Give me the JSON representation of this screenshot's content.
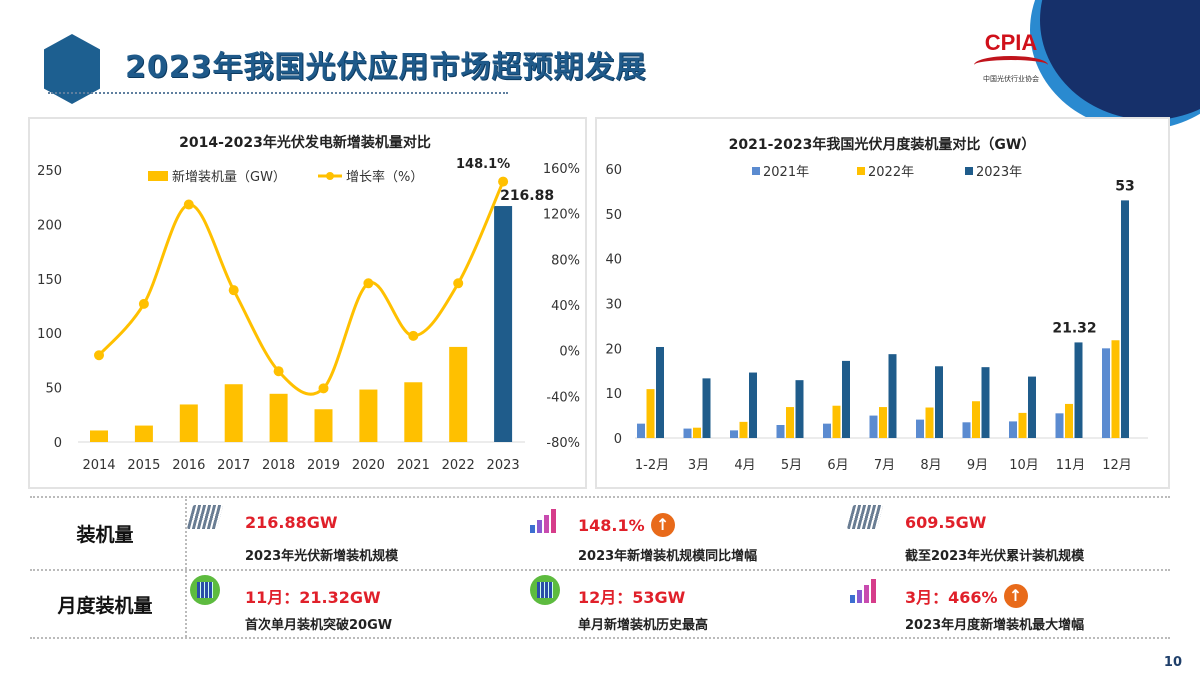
{
  "header": {
    "title": "2023年我国光伏应用市场超预期发展",
    "logo_text": "CPIA",
    "logo_sub": "中国光伏行业协会",
    "page_number": "10"
  },
  "colors": {
    "gold": "#FFC000",
    "navy": "#1F5C8B",
    "blue2021": "#5B8BD0",
    "red": "#E0202A"
  },
  "chart_data": [
    {
      "type": "bar+line",
      "title": "2014-2023年光伏发电新增装机量对比",
      "categories": [
        "2014",
        "2015",
        "2016",
        "2017",
        "2018",
        "2019",
        "2020",
        "2021",
        "2022",
        "2023"
      ],
      "series": [
        {
          "name": "新增装机量（GW）",
          "type": "bar",
          "axis": "left",
          "values": [
            10.6,
            15.1,
            34.5,
            53.1,
            44.3,
            30.1,
            48.2,
            54.9,
            87.4,
            216.88
          ]
        },
        {
          "name": "增长率（%）",
          "type": "line",
          "axis": "right",
          "values": [
            -4,
            41,
            128,
            53,
            -18,
            -33,
            59,
            13,
            59,
            148.1
          ]
        }
      ],
      "highlight_bar": "2023",
      "data_labels": {
        "bar_2023": "216.88",
        "line_2023": "148.1%"
      },
      "ylim_left": [
        0,
        250
      ],
      "yticks_left": [
        "0",
        "50",
        "100",
        "150",
        "200",
        "250"
      ],
      "ylim_right": [
        -80,
        160
      ],
      "yticks_right": [
        "-80%",
        "-40%",
        "0%",
        "40%",
        "80%",
        "120%",
        "160%"
      ],
      "legend": "top",
      "grid": false
    },
    {
      "type": "bar",
      "title": "2021-2023年我国光伏月度装机量对比（GW）",
      "categories": [
        "1-2月",
        "3月",
        "4月",
        "5月",
        "6月",
        "7月",
        "8月",
        "9月",
        "10月",
        "11月",
        "12月"
      ],
      "series": [
        {
          "name": "2021年",
          "values": [
            3.2,
            2.1,
            1.7,
            2.9,
            3.2,
            5.0,
            4.1,
            3.5,
            3.7,
            5.5,
            20.0
          ]
        },
        {
          "name": "2022年",
          "values": [
            10.9,
            2.3,
            3.6,
            6.9,
            7.2,
            6.9,
            6.8,
            8.2,
            5.6,
            7.6,
            21.8
          ]
        },
        {
          "name": "2023年",
          "values": [
            20.3,
            13.3,
            14.6,
            12.9,
            17.2,
            18.7,
            16.0,
            15.8,
            13.7,
            21.32,
            53
          ]
        }
      ],
      "data_labels": {
        "11月": "21.32",
        "12月": "53"
      },
      "ylim": [
        0,
        60
      ],
      "yticks": [
        "0",
        "10",
        "20",
        "30",
        "40",
        "50",
        "60"
      ],
      "legend": "top",
      "grid": false
    }
  ],
  "summary": {
    "rows": [
      {
        "label": "装机量",
        "items": [
          {
            "icon": "solar-panel-icon",
            "value": "216.88GW",
            "desc": "2023年光伏新增装机规模"
          },
          {
            "icon": "growth-chart-icon",
            "value": "148.1%",
            "badge": "↑",
            "desc": "2023年新增装机规模同比增幅"
          },
          {
            "icon": "solar-panel-icon",
            "value": "609.5GW",
            "desc": "截至2023年光伏累计装机规模"
          }
        ]
      },
      {
        "label": "月度装机量",
        "items": [
          {
            "icon": "green-solar-icon",
            "value": "11月：21.32GW",
            "desc": "首次单月装机突破20GW"
          },
          {
            "icon": "green-solar-icon",
            "value": "12月：53GW",
            "desc": "单月新增装机历史最高"
          },
          {
            "icon": "growth-chart-icon",
            "value": "3月：466%",
            "badge": "↑",
            "desc": "2023年月度新增装机最大增幅"
          }
        ]
      }
    ]
  }
}
